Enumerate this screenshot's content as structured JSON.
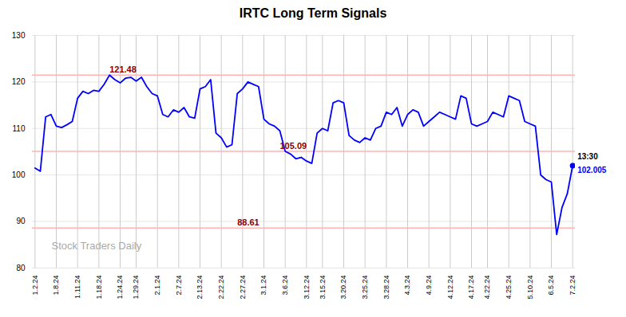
{
  "chart_data": {
    "type": "line",
    "title": "IRTC Long Term Signals",
    "color": "blue",
    "grid": true,
    "ylim": [
      80,
      130
    ],
    "yticks": [
      80,
      90,
      100,
      110,
      120,
      130
    ],
    "categories": [
      "1.2.24",
      null,
      null,
      null,
      "1.8.24",
      null,
      null,
      null,
      "1.11.24",
      null,
      null,
      null,
      "1.18.24",
      null,
      null,
      null,
      "1.24.24",
      null,
      null,
      "1.29.24",
      null,
      null,
      null,
      "2.1.24",
      null,
      null,
      null,
      "2.7.24",
      null,
      null,
      null,
      "2.13.24",
      null,
      null,
      null,
      "2.22.24",
      null,
      null,
      null,
      "2.27.24",
      null,
      null,
      null,
      "3.1.24",
      null,
      null,
      null,
      "3.6.24",
      null,
      null,
      null,
      "3.12.24",
      null,
      null,
      "3.15.24",
      null,
      null,
      null,
      "3.20.24",
      null,
      null,
      null,
      "3.25.24",
      null,
      null,
      null,
      "3.28.24",
      null,
      null,
      null,
      "4.3.24",
      null,
      null,
      null,
      "4.9.24",
      null,
      null,
      null,
      "4.12.24",
      null,
      null,
      null,
      "4.17.24",
      null,
      null,
      "4.22.24",
      null,
      null,
      null,
      "4.25.24",
      null,
      null,
      null,
      "5.10.24",
      null,
      null,
      null,
      "6.5.24",
      null,
      null,
      null,
      "7.2.24"
    ],
    "values": [
      101.5,
      100.8,
      112.5,
      113.0,
      110.5,
      110.2,
      110.8,
      111.5,
      116.5,
      118.0,
      117.5,
      118.2,
      118.0,
      119.5,
      121.48,
      120.5,
      119.8,
      120.8,
      121.0,
      120.2,
      121.0,
      119.0,
      117.5,
      117.0,
      113.0,
      112.5,
      114.0,
      113.5,
      114.5,
      112.5,
      112.2,
      118.5,
      119.0,
      120.5,
      109.0,
      108.0,
      106.0,
      106.5,
      117.5,
      118.5,
      120.0,
      119.5,
      119.0,
      112.0,
      111.0,
      110.5,
      109.5,
      105.09,
      104.5,
      103.5,
      103.8,
      103.0,
      102.5,
      109.0,
      110.0,
      109.5,
      115.5,
      116.0,
      115.5,
      108.5,
      107.5,
      107.0,
      108.0,
      107.5,
      110.0,
      110.5,
      113.5,
      113.0,
      114.5,
      110.5,
      113.0,
      114.0,
      113.5,
      110.5,
      111.5,
      112.5,
      113.5,
      113.0,
      112.5,
      112.0,
      117.0,
      116.5,
      111.0,
      110.5,
      111.0,
      111.5,
      113.5,
      113.0,
      112.5,
      117.0,
      116.5,
      116.0,
      111.5,
      111.0,
      110.5,
      100.0,
      99.0,
      98.5,
      87.2,
      93.0,
      96.0,
      102.005
    ],
    "hlines": [
      {
        "y": 121.48,
        "label": "121.48",
        "color": "#ffb3b3",
        "label_color": "#8B0000"
      },
      {
        "y": 105.09,
        "label": "105.09",
        "color": "#ffb3b3",
        "label_color": "#8B0000"
      },
      {
        "y": 88.61,
        "label": "88.61",
        "color": "#ffb3b3",
        "label_color": "#8B0000"
      }
    ],
    "last_point_labels": [
      {
        "text": "13:30",
        "color": "black"
      },
      {
        "text": "102.005",
        "color": "blue"
      }
    ],
    "watermark": {
      "text": "Stock Traders Daily",
      "color": "#aaaaaa"
    }
  }
}
